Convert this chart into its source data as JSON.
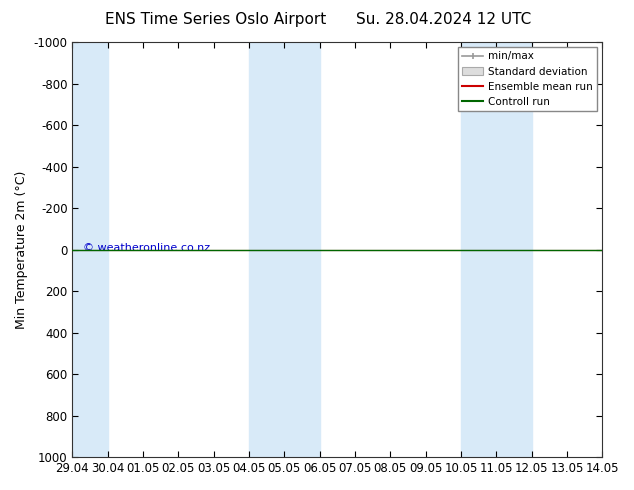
{
  "title_left": "ENS Time Series Oslo Airport",
  "title_right": "Su. 28.04.2024 12 UTC",
  "ylabel": "Min Temperature 2m (°C)",
  "ylim": [
    -1000,
    1000
  ],
  "yticks": [
    -1000,
    -800,
    -600,
    -400,
    -200,
    0,
    200,
    400,
    600,
    800,
    1000
  ],
  "xtick_labels": [
    "29.04",
    "30.04",
    "01.05",
    "02.05",
    "03.05",
    "04.05",
    "05.05",
    "06.05",
    "07.05",
    "08.05",
    "09.05",
    "10.05",
    "11.05",
    "12.05",
    "13.05",
    "14.05"
  ],
  "xtick_values": [
    0,
    1,
    2,
    3,
    4,
    5,
    6,
    7,
    8,
    9,
    10,
    11,
    12,
    13,
    14,
    15
  ],
  "shaded_bands": [
    [
      0,
      1
    ],
    [
      5,
      6
    ],
    [
      6,
      7
    ],
    [
      11,
      12
    ],
    [
      12,
      13
    ]
  ],
  "shade_color": "#d8eaf8",
  "control_run_y": 0,
  "control_run_color": "#006600",
  "ensemble_mean_color": "#cc0000",
  "copyright_text": "© weatheronline.co.nz",
  "copyright_color": "#0000cc",
  "background_color": "#ffffff",
  "plot_bg_color": "#ffffff",
  "legend_entries": [
    "min/max",
    "Standard deviation",
    "Ensemble mean run",
    "Controll run"
  ],
  "legend_colors_line": [
    "#999999",
    "#bbbbbb",
    "#cc0000",
    "#006600"
  ],
  "title_fontsize": 11,
  "axis_label_fontsize": 9,
  "tick_fontsize": 8.5
}
